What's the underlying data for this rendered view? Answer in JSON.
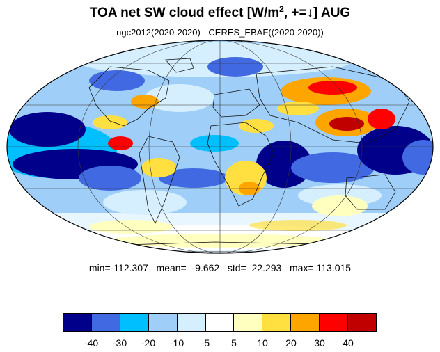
{
  "title": {
    "main": "TOA net SW cloud effect [W/m",
    "sup": "2",
    "tail": ", +=↓]  AUG"
  },
  "subtitle": "ngc2012(2020-2020) - CERES_EBAF((2020-2020))",
  "stats": "min=-112.307   mean=  -9.662   std=  22.293   max= 113.015",
  "projection": "mollweide",
  "colorbar": {
    "colors": [
      "#00008b",
      "#4169e1",
      "#00bfff",
      "#9fcff8",
      "#d6efff",
      "#ffffff",
      "#ffffc0",
      "#ffe040",
      "#ffa500",
      "#ff0000",
      "#c00000"
    ],
    "labels": [
      "-40",
      "-30",
      "-20",
      "-10",
      "-5",
      "5",
      "10",
      "20",
      "30",
      "40"
    ]
  }
}
